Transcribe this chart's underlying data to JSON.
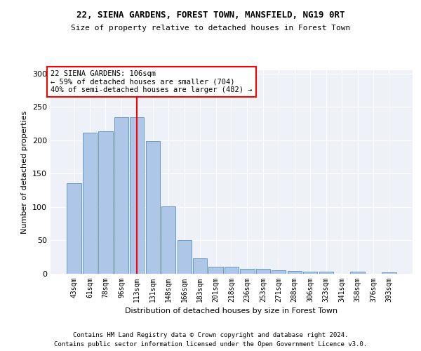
{
  "title1": "22, SIENA GARDENS, FOREST TOWN, MANSFIELD, NG19 0RT",
  "title2": "Size of property relative to detached houses in Forest Town",
  "xlabel": "Distribution of detached houses by size in Forest Town",
  "ylabel": "Number of detached properties",
  "footer1": "Contains HM Land Registry data © Crown copyright and database right 2024.",
  "footer2": "Contains public sector information licensed under the Open Government Licence v3.0.",
  "bin_labels": [
    "43sqm",
    "61sqm",
    "78sqm",
    "96sqm",
    "113sqm",
    "131sqm",
    "148sqm",
    "166sqm",
    "183sqm",
    "201sqm",
    "218sqm",
    "236sqm",
    "253sqm",
    "271sqm",
    "288sqm",
    "306sqm",
    "323sqm",
    "341sqm",
    "358sqm",
    "376sqm",
    "393sqm"
  ],
  "bar_values": [
    136,
    211,
    213,
    235,
    235,
    199,
    101,
    51,
    23,
    10,
    10,
    7,
    7,
    5,
    4,
    3,
    3,
    0,
    3,
    0,
    2
  ],
  "bar_color": "#aec6e8",
  "bar_edge_color": "#6699cc",
  "property_label": "22 SIENA GARDENS: 106sqm",
  "annotation_line1": "← 59% of detached houses are smaller (704)",
  "annotation_line2": "40% of semi-detached houses are larger (482) →",
  "vline_color": "red",
  "vline_position": 4.0,
  "annotation_box_color": "red",
  "ylim": [
    0,
    305
  ],
  "yticks": [
    0,
    50,
    100,
    150,
    200,
    250,
    300
  ],
  "background_color": "#eef2f8",
  "grid_color": "white",
  "title1_fontsize": 9,
  "title2_fontsize": 8,
  "ylabel_fontsize": 8,
  "xlabel_fontsize": 8,
  "tick_fontsize": 7,
  "annot_fontsize": 7.5,
  "footer_fontsize": 6.5
}
